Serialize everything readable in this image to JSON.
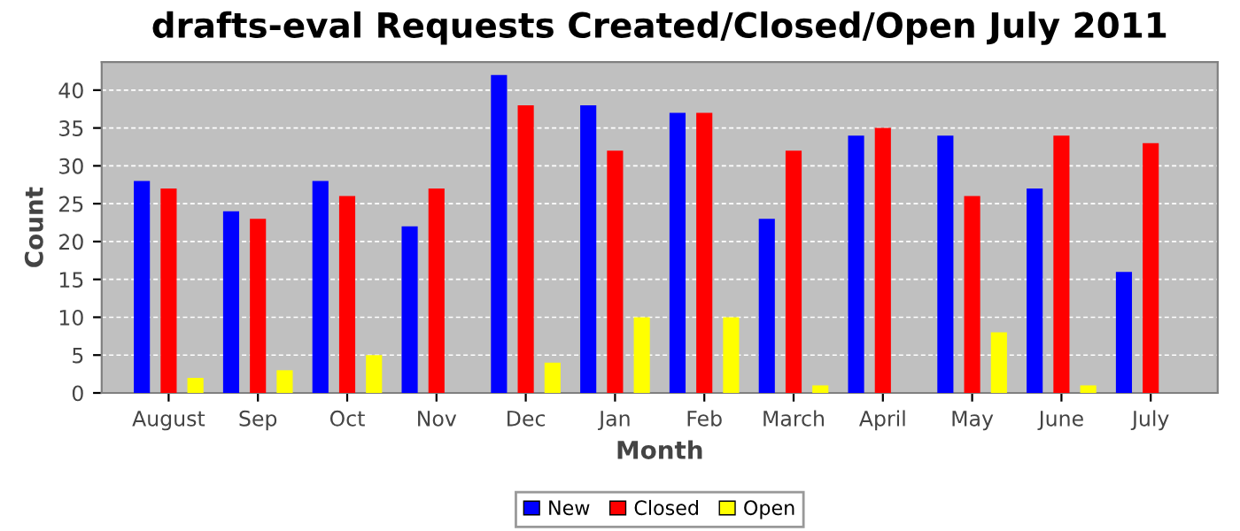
{
  "chart_data": {
    "type": "bar",
    "title": "drafts-eval Requests Created/Closed/Open July 2011",
    "xlabel": "Month",
    "ylabel": "Count",
    "categories": [
      "August",
      "Sep",
      "Oct",
      "Nov",
      "Dec",
      "Jan",
      "Feb",
      "March",
      "April",
      "May",
      "June",
      "July"
    ],
    "series": [
      {
        "name": "New",
        "color": "#0000ff",
        "values": [
          28,
          24,
          28,
          22,
          42,
          38,
          37,
          23,
          34,
          34,
          27,
          16
        ]
      },
      {
        "name": "Closed",
        "color": "#ff0000",
        "values": [
          27,
          23,
          26,
          27,
          38,
          32,
          37,
          32,
          35,
          26,
          34,
          33
        ]
      },
      {
        "name": "Open",
        "color": "#ffff00",
        "values": [
          2,
          3,
          5,
          0,
          4,
          10,
          10,
          1,
          0,
          8,
          1,
          0
        ]
      }
    ],
    "ylim": [
      0,
      43.7
    ],
    "yticks": [
      0,
      5,
      10,
      15,
      20,
      25,
      30,
      35,
      40
    ],
    "grid": "y",
    "legend": "bottom"
  }
}
